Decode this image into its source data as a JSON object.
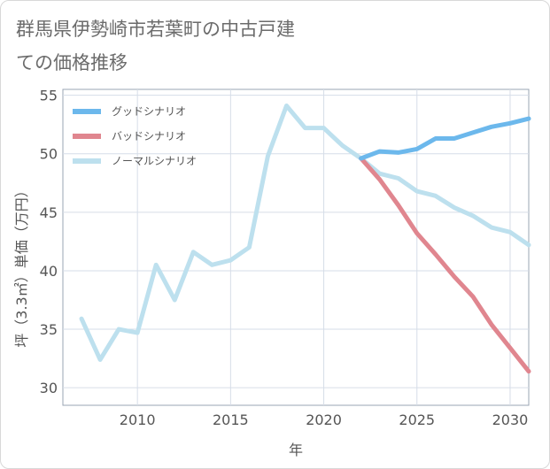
{
  "page_title": "群馬県伊勢崎市若葉町の中古戸建ての価格推移",
  "chart_data": {
    "type": "line",
    "title": "群馬県伊勢崎市若葉町の中古戸建ての価格推移",
    "xlabel": "年",
    "ylabel": "坪（3.3㎡）単価（万円）",
    "xlim": [
      2006,
      2031
    ],
    "ylim": [
      28.5,
      55.5
    ],
    "xticks": [
      2010,
      2015,
      2020,
      2025,
      2030
    ],
    "yticks": [
      30,
      35,
      40,
      45,
      50,
      55
    ],
    "grid": true,
    "legend_position": "top-left",
    "series": [
      {
        "name": "グッドシナリオ",
        "color": "#6cb8ec",
        "x": [
          2022,
          2023,
          2024,
          2025,
          2026,
          2027,
          2028,
          2029,
          2030,
          2031
        ],
        "values": [
          49.6,
          50.2,
          50.1,
          50.4,
          51.3,
          51.3,
          51.8,
          52.3,
          52.6,
          53.0
        ]
      },
      {
        "name": "バッドシナリオ",
        "color": "#e0868f",
        "x": [
          2022,
          2023,
          2024,
          2025,
          2026,
          2027,
          2028,
          2029,
          2030,
          2031
        ],
        "values": [
          49.6,
          47.8,
          45.6,
          43.2,
          41.4,
          39.5,
          37.8,
          35.4,
          33.4,
          31.4
        ]
      },
      {
        "name": "ノーマルシナリオ",
        "color": "#bde0ee",
        "x": [
          2007,
          2008,
          2009,
          2010,
          2011,
          2012,
          2013,
          2014,
          2015,
          2016,
          2017,
          2018,
          2019,
          2020,
          2021,
          2022,
          2023,
          2024,
          2025,
          2026,
          2027,
          2028,
          2029,
          2030,
          2031
        ],
        "values": [
          35.9,
          32.4,
          35.0,
          34.7,
          40.5,
          37.5,
          41.6,
          40.5,
          40.9,
          42.0,
          49.8,
          54.1,
          52.2,
          52.2,
          50.7,
          49.6,
          48.3,
          47.9,
          46.8,
          46.4,
          45.4,
          44.7,
          43.7,
          43.3,
          42.2
        ]
      }
    ]
  }
}
